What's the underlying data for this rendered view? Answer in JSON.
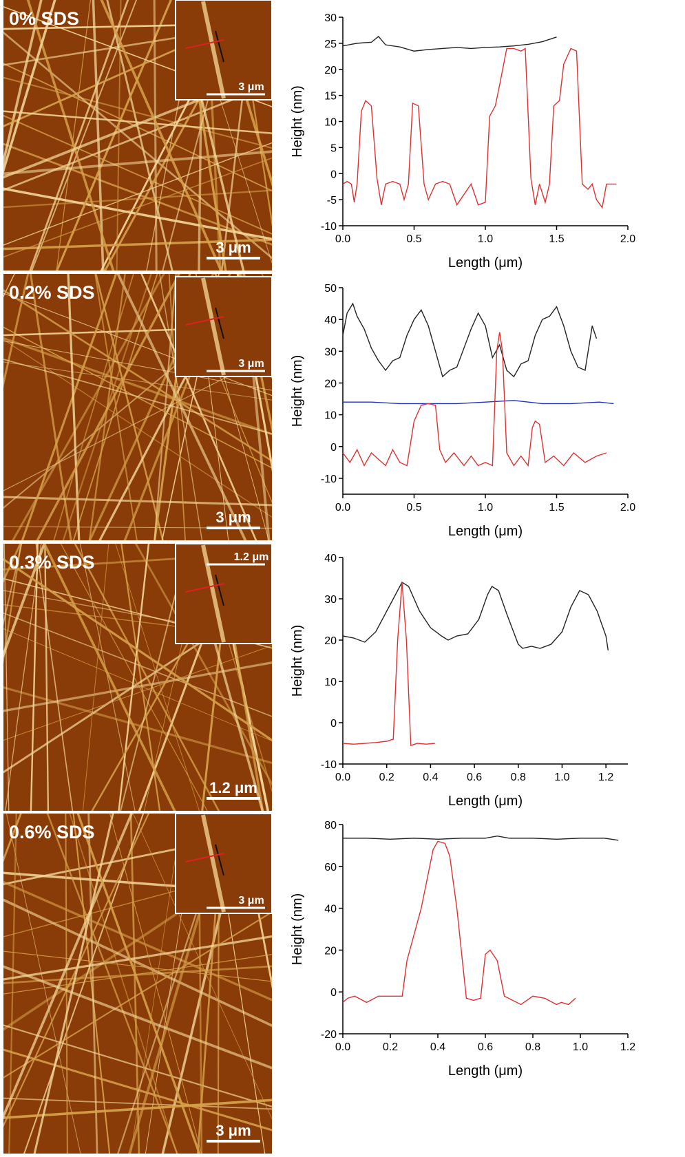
{
  "images": [
    {
      "label": "0% SDS",
      "scale": "3 μm",
      "inset_scale": "3 μm"
    },
    {
      "label": "0.2% SDS",
      "scale": "3 μm",
      "inset_scale": "3 μm"
    },
    {
      "label": "0.3% SDS",
      "scale": "1.2 μm",
      "inset_scale": "1.2 μm"
    },
    {
      "label": "0.6% SDS",
      "scale": "3 μm",
      "inset_scale": "3 μm"
    }
  ],
  "chart_data": [
    {
      "type": "line",
      "x_label": "Length (μm)",
      "y_label": "Height (nm)",
      "xlim": [
        0,
        2
      ],
      "xticks": [
        {
          "value": 0,
          "label": "0.0"
        },
        {
          "value": 0.5,
          "label": "0.5"
        },
        {
          "value": 1,
          "label": "1.0"
        },
        {
          "value": 1.5,
          "label": "1.5"
        },
        {
          "value": 2,
          "label": "2.0"
        }
      ],
      "ylim": [
        -10,
        30
      ],
      "yticks": [
        -10,
        -5,
        0,
        5,
        10,
        15,
        20,
        25,
        30
      ],
      "series": [
        {
          "color": "#222222",
          "x": [
            0,
            0.1,
            0.2,
            0.25,
            0.3,
            0.4,
            0.5,
            0.6,
            0.7,
            0.8,
            0.9,
            1.0,
            1.1,
            1.2,
            1.3,
            1.4,
            1.5
          ],
          "values": [
            24.5,
            25,
            25.2,
            26.3,
            24.7,
            24.3,
            23.5,
            23.8,
            24,
            24.2,
            24,
            24.2,
            24.3,
            24.5,
            24.8,
            25.3,
            26.2
          ]
        },
        {
          "color": "#e03030",
          "x": [
            0,
            0.03,
            0.06,
            0.08,
            0.1,
            0.13,
            0.16,
            0.2,
            0.24,
            0.27,
            0.3,
            0.35,
            0.4,
            0.43,
            0.46,
            0.49,
            0.53,
            0.57,
            0.6,
            0.65,
            0.7,
            0.75,
            0.8,
            0.85,
            0.9,
            0.95,
            1.0,
            1.03,
            1.07,
            1.1,
            1.15,
            1.2,
            1.25,
            1.28,
            1.32,
            1.35,
            1.38,
            1.42,
            1.45,
            1.48,
            1.52,
            1.55,
            1.6,
            1.64,
            1.68,
            1.72,
            1.75,
            1.78,
            1.82,
            1.85,
            1.88,
            1.92
          ],
          "values": [
            -2,
            -1.5,
            -2,
            -5.5,
            -2,
            12,
            14,
            13,
            -1,
            -6,
            -2,
            -1.5,
            -2,
            -5,
            -2,
            13.5,
            13,
            -2,
            -5,
            -2,
            -1.5,
            -2,
            -6,
            -4,
            -2,
            -6,
            -5.5,
            11,
            13,
            17,
            24,
            24,
            23.5,
            24,
            -1,
            -6,
            -2,
            -5.5,
            -2,
            13,
            14,
            21,
            24,
            23.5,
            -2,
            -3,
            -2,
            -5,
            -6.5,
            -2,
            -2,
            -2
          ]
        }
      ]
    },
    {
      "type": "line",
      "x_label": "Length (μm)",
      "y_label": "Height (nm)",
      "xlim": [
        0,
        2
      ],
      "xticks": [
        {
          "value": 0,
          "label": "0.0"
        },
        {
          "value": 0.5,
          "label": "0.5"
        },
        {
          "value": 1,
          "label": "1.0"
        },
        {
          "value": 1.5,
          "label": "1.5"
        },
        {
          "value": 2,
          "label": "2.0"
        }
      ],
      "ylim": [
        -15,
        50
      ],
      "yticks": [
        -10,
        0,
        10,
        20,
        30,
        40,
        50
      ],
      "series": [
        {
          "color": "#222222",
          "x": [
            0,
            0.03,
            0.07,
            0.1,
            0.15,
            0.2,
            0.25,
            0.3,
            0.35,
            0.4,
            0.45,
            0.5,
            0.55,
            0.6,
            0.65,
            0.7,
            0.75,
            0.8,
            0.85,
            0.9,
            0.95,
            1.0,
            1.05,
            1.1,
            1.15,
            1.2,
            1.25,
            1.3,
            1.35,
            1.4,
            1.45,
            1.5,
            1.55,
            1.6,
            1.65,
            1.7,
            1.75,
            1.78
          ],
          "values": [
            35,
            42,
            45,
            41,
            37,
            31,
            27,
            24,
            27,
            28,
            35,
            40,
            43,
            38,
            30,
            22,
            24,
            25,
            31,
            37,
            42,
            38,
            28,
            32,
            24,
            22,
            26,
            27,
            35,
            40,
            41,
            44,
            38,
            30,
            25,
            24,
            38,
            34
          ]
        },
        {
          "color": "#2030c0",
          "x": [
            0,
            0.2,
            0.4,
            0.6,
            0.8,
            1.0,
            1.2,
            1.4,
            1.6,
            1.8,
            1.9
          ],
          "values": [
            14,
            14,
            13.5,
            13.5,
            13.5,
            14,
            14.5,
            13.5,
            13.5,
            14,
            13.5
          ]
        },
        {
          "color": "#e03030",
          "x": [
            0,
            0.05,
            0.1,
            0.15,
            0.2,
            0.25,
            0.3,
            0.35,
            0.4,
            0.45,
            0.5,
            0.55,
            0.6,
            0.65,
            0.68,
            0.72,
            0.78,
            0.85,
            0.9,
            0.95,
            1.0,
            1.05,
            1.08,
            1.1,
            1.12,
            1.15,
            1.2,
            1.25,
            1.3,
            1.33,
            1.35,
            1.38,
            1.42,
            1.48,
            1.55,
            1.62,
            1.7,
            1.78,
            1.85
          ],
          "values": [
            -2,
            -5,
            -1,
            -6,
            -2,
            -4,
            -6,
            -1,
            -5,
            -6,
            8,
            13,
            13.5,
            13,
            -1,
            -5,
            -2,
            -6,
            -3,
            -6,
            -5,
            -6,
            30,
            36,
            30,
            -2,
            -6,
            -3,
            -6,
            6,
            8,
            7,
            -5,
            -3,
            -6,
            -2,
            -5,
            -3,
            -2
          ]
        }
      ]
    },
    {
      "type": "line",
      "x_label": "Length (μm)",
      "y_label": "Height (nm)",
      "xlim": [
        0,
        1.3
      ],
      "xticks": [
        {
          "value": 0,
          "label": "0.0"
        },
        {
          "value": 0.2,
          "label": "0.2"
        },
        {
          "value": 0.4,
          "label": "0.4"
        },
        {
          "value": 0.6,
          "label": "0.6"
        },
        {
          "value": 0.8,
          "label": "0.8"
        },
        {
          "value": 1,
          "label": "1.0"
        },
        {
          "value": 1.2,
          "label": "1.2"
        }
      ],
      "ylim": [
        -10,
        40
      ],
      "yticks": [
        -10,
        0,
        10,
        20,
        30,
        40
      ],
      "series": [
        {
          "color": "#222222",
          "x": [
            0,
            0.05,
            0.1,
            0.15,
            0.2,
            0.24,
            0.27,
            0.3,
            0.35,
            0.4,
            0.45,
            0.48,
            0.52,
            0.57,
            0.62,
            0.66,
            0.68,
            0.71,
            0.75,
            0.8,
            0.82,
            0.86,
            0.9,
            0.95,
            1.0,
            1.04,
            1.08,
            1.12,
            1.16,
            1.2,
            1.21
          ],
          "values": [
            21,
            20.5,
            19.5,
            22,
            27,
            31,
            34,
            33,
            27,
            23,
            21,
            20,
            21,
            21.5,
            25,
            31,
            33,
            32,
            26,
            19,
            18,
            18.5,
            18,
            19,
            22,
            28,
            32,
            31,
            27,
            21,
            17.5
          ]
        },
        {
          "color": "#e03030",
          "x": [
            0,
            0.05,
            0.1,
            0.15,
            0.2,
            0.23,
            0.25,
            0.27,
            0.29,
            0.31,
            0.34,
            0.38,
            0.42
          ],
          "values": [
            -5,
            -5.2,
            -5,
            -4.8,
            -4.5,
            -4,
            20,
            34,
            20,
            -5.5,
            -5,
            -5.2,
            -5
          ]
        }
      ]
    },
    {
      "type": "line",
      "x_label": "Length (μm)",
      "y_label": "Height (nm)",
      "xlim": [
        0,
        1.2
      ],
      "xticks": [
        {
          "value": 0,
          "label": "0.0"
        },
        {
          "value": 0.2,
          "label": "0.2"
        },
        {
          "value": 0.4,
          "label": "0.4"
        },
        {
          "value": 0.6,
          "label": "0.6"
        },
        {
          "value": 0.8,
          "label": "0.8"
        },
        {
          "value": 1,
          "label": "1.0"
        },
        {
          "value": 1.2,
          "label": "1.2"
        }
      ],
      "ylim": [
        -20,
        80
      ],
      "yticks": [
        -20,
        0,
        20,
        40,
        60,
        80
      ],
      "series": [
        {
          "color": "#222222",
          "x": [
            0,
            0.1,
            0.2,
            0.3,
            0.4,
            0.5,
            0.6,
            0.65,
            0.7,
            0.8,
            0.9,
            1.0,
            1.1,
            1.16
          ],
          "values": [
            73.5,
            73.5,
            73,
            73.5,
            73,
            73.5,
            73.5,
            74.5,
            73.5,
            73.5,
            73,
            73.5,
            73.5,
            72.5
          ]
        },
        {
          "color": "#e03030",
          "x": [
            0,
            0.02,
            0.05,
            0.1,
            0.15,
            0.2,
            0.25,
            0.27,
            0.33,
            0.38,
            0.4,
            0.43,
            0.45,
            0.48,
            0.52,
            0.55,
            0.58,
            0.6,
            0.62,
            0.65,
            0.68,
            0.75,
            0.8,
            0.85,
            0.9,
            0.92,
            0.95,
            0.98
          ],
          "values": [
            -5,
            -3,
            -2,
            -5,
            -2,
            -2,
            -2,
            15,
            40,
            68,
            72,
            71,
            65,
            40,
            -3,
            -4,
            -3,
            18,
            20,
            15,
            -2,
            -6,
            -2,
            -3,
            -6,
            -5,
            -6,
            -3
          ]
        }
      ]
    }
  ]
}
